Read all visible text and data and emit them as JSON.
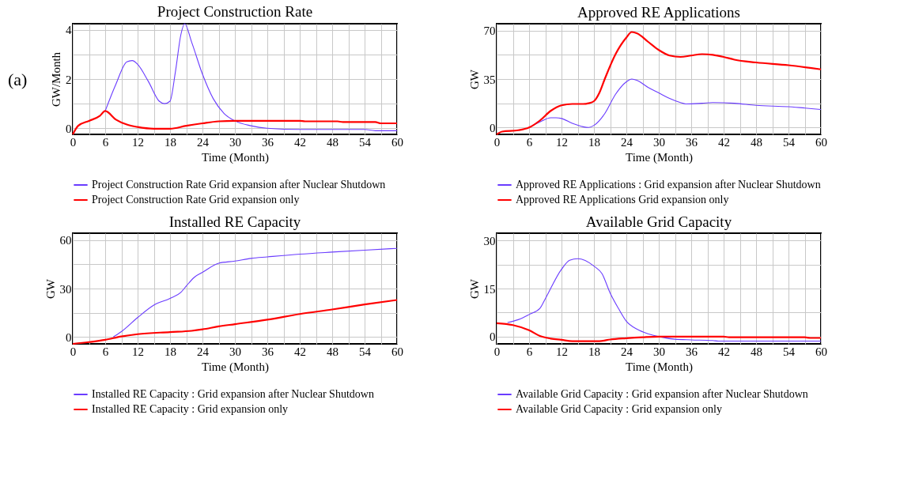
{
  "chart_data": [
    {
      "type": "line",
      "title": "Project Construction Rate",
      "xlabel": "Time (Month)",
      "ylabel": "GW/Month",
      "annotations": [
        "(a)"
      ],
      "grid": true,
      "legend": "bottom",
      "xlim": [
        0,
        60
      ],
      "xticks": [
        0,
        {
          "value": 3,
          "label": null
        },
        6,
        {
          "value": 9,
          "label": null
        },
        12,
        {
          "value": 15,
          "label": null
        },
        18,
        {
          "value": 21,
          "label": null
        },
        24,
        {
          "value": 27,
          "label": null
        },
        30,
        {
          "value": 33,
          "label": null
        },
        36,
        {
          "value": 39,
          "label": null
        },
        42,
        {
          "value": 45,
          "label": null
        },
        48,
        {
          "value": 51,
          "label": null
        },
        54,
        {
          "value": 57,
          "label": null
        },
        60
      ],
      "ylim": [
        -0.25,
        4.25
      ],
      "yticks": [
        0,
        {
          "value": 1,
          "label": null
        },
        2,
        {
          "value": 3,
          "label": null
        },
        4
      ],
      "series": [
        {
          "name": "Project Construction Rate Grid expansion after Nuclear Shutdown",
          "color": "#6a3cff",
          "x": [
            6,
            8,
            10,
            11,
            12,
            14,
            16,
            17,
            18,
            19,
            20,
            20.7,
            22,
            24,
            26,
            28,
            30,
            33,
            36,
            42,
            54,
            56,
            60
          ],
          "values": [
            0.7,
            1.8,
            2.7,
            2.75,
            2.6,
            1.9,
            1.1,
            1.0,
            1.1,
            2.3,
            3.8,
            4.25,
            3.5,
            2.2,
            1.2,
            0.6,
            0.3,
            0.1,
            0.0,
            -0.05,
            -0.05,
            -0.1,
            -0.1
          ]
        },
        {
          "name": "Project Construction Rate Grid expansion only",
          "color": "#ff0000",
          "x": [
            0,
            1,
            3,
            5,
            6,
            8,
            10,
            12,
            15,
            18,
            21,
            24,
            27,
            30,
            42,
            43,
            49,
            50,
            56,
            57,
            60
          ],
          "values": [
            -0.25,
            0.1,
            0.3,
            0.5,
            0.7,
            0.35,
            0.15,
            0.05,
            -0.02,
            -0.02,
            0.1,
            0.2,
            0.28,
            0.3,
            0.3,
            0.28,
            0.28,
            0.25,
            0.25,
            0.2,
            0.2
          ]
        }
      ]
    },
    {
      "type": "line",
      "title": "Approved RE Applications",
      "xlabel": "Time (Month)",
      "ylabel": "GW",
      "grid": true,
      "legend": "bottom",
      "xlim": [
        0,
        60
      ],
      "xticks": [
        0,
        {
          "value": 3,
          "label": null
        },
        6,
        {
          "value": 9,
          "label": null
        },
        12,
        {
          "value": 15,
          "label": null
        },
        18,
        {
          "value": 21,
          "label": null
        },
        24,
        {
          "value": 27,
          "label": null
        },
        30,
        {
          "value": 33,
          "label": null
        },
        36,
        {
          "value": 39,
          "label": null
        },
        42,
        {
          "value": 45,
          "label": null
        },
        48,
        {
          "value": 51,
          "label": null
        },
        54,
        {
          "value": 57,
          "label": null
        },
        60
      ],
      "ylim": [
        -5,
        75
      ],
      "yticks": [
        0,
        {
          "value": 17.5,
          "label": null
        },
        35,
        {
          "value": 52.5,
          "label": null
        },
        70
      ],
      "series": [
        {
          "name": "Approved RE Applications : Grid expansion after Nuclear Shutdown",
          "color": "#6a3cff",
          "x": [
            6,
            8,
            10,
            11,
            12,
            14,
            16,
            17,
            18,
            20,
            22,
            24,
            25,
            26,
            28,
            30,
            32,
            34,
            35,
            38,
            40,
            44,
            48,
            54,
            60
          ],
          "values": [
            0,
            4,
            7,
            7,
            6.5,
            3,
            0.5,
            0,
            1.5,
            10,
            24,
            33,
            35,
            34,
            29,
            25,
            21,
            18,
            17,
            17.5,
            18,
            17.5,
            16,
            15,
            13
          ]
        },
        {
          "name": "Approved RE Applications Grid expansion only",
          "color": "#ff0000",
          "x": [
            0,
            1,
            4,
            6,
            8,
            10,
            12,
            14,
            16,
            17,
            18,
            19,
            20,
            22,
            24,
            25,
            26,
            28,
            30,
            32,
            34,
            36,
            38,
            40,
            42,
            44,
            48,
            54,
            60
          ],
          "values": [
            -5,
            -3,
            -2,
            0,
            5,
            12,
            16,
            17,
            17,
            17.5,
            19,
            25,
            35,
            53,
            65,
            69,
            68,
            62,
            56,
            52,
            51,
            52,
            53,
            52.5,
            51,
            49,
            47,
            45,
            42
          ]
        }
      ]
    },
    {
      "type": "line",
      "title": "Installed RE Capacity",
      "xlabel": "Time (Month)",
      "ylabel": "GW",
      "grid": true,
      "legend": "bottom",
      "xlim": [
        0,
        60
      ],
      "xticks": [
        0,
        {
          "value": 3,
          "label": null
        },
        6,
        {
          "value": 9,
          "label": null
        },
        12,
        {
          "value": 15,
          "label": null
        },
        18,
        {
          "value": 21,
          "label": null
        },
        24,
        {
          "value": 27,
          "label": null
        },
        30,
        {
          "value": 33,
          "label": null
        },
        36,
        {
          "value": 39,
          "label": null
        },
        42,
        {
          "value": 45,
          "label": null
        },
        48,
        {
          "value": 51,
          "label": null
        },
        54,
        {
          "value": 57,
          "label": null
        },
        60
      ],
      "ylim": [
        -4.3,
        64.3
      ],
      "yticks": [
        0,
        {
          "value": 15,
          "label": null
        },
        30,
        {
          "value": 45,
          "label": null
        },
        60
      ],
      "series": [
        {
          "name": "Installed RE Capacity : Grid expansion after Nuclear Shutdown",
          "color": "#6a3cff",
          "x": [
            7.5,
            9,
            12,
            15,
            18,
            20,
            21,
            22.5,
            24,
            27,
            30,
            33,
            36,
            42,
            48,
            54,
            60
          ],
          "values": [
            0,
            3.3,
            12,
            19.7,
            23.9,
            27.6,
            31.5,
            37,
            40,
            45.7,
            47,
            48.7,
            49.6,
            51.3,
            52.6,
            53.8,
            54.9
          ]
        },
        {
          "name": "Installed RE Capacity : Grid expansion only",
          "color": "#ff0000",
          "x": [
            0,
            3,
            6,
            9,
            12,
            18,
            22,
            24,
            27,
            30,
            36,
            42,
            48,
            54,
            60
          ],
          "values": [
            -4.3,
            -3.2,
            -1.8,
            0.3,
            1.7,
            3,
            3.8,
            4.7,
            6.5,
            7.9,
            10.7,
            14.2,
            17,
            20.1,
            22.9
          ]
        }
      ]
    },
    {
      "type": "line",
      "title": "Available Grid Capacity",
      "xlabel": "Time (Month)",
      "ylabel": "GW",
      "grid": true,
      "legend": "bottom",
      "xlim": [
        0,
        60
      ],
      "xticks": [
        0,
        {
          "value": 3,
          "label": null
        },
        6,
        {
          "value": 9,
          "label": null
        },
        12,
        {
          "value": 15,
          "label": null
        },
        18,
        {
          "value": 21,
          "label": null
        },
        24,
        {
          "value": 27,
          "label": null
        },
        30,
        {
          "value": 33,
          "label": null
        },
        36,
        {
          "value": 39,
          "label": null
        },
        42,
        {
          "value": 45,
          "label": null
        },
        48,
        {
          "value": 51,
          "label": null
        },
        54,
        {
          "value": 57,
          "label": null
        },
        60
      ],
      "ylim": [
        -2.25,
        32.25
      ],
      "yticks": [
        0,
        {
          "value": 7.5,
          "label": null
        },
        15,
        {
          "value": 22.5,
          "label": null
        },
        30
      ],
      "series": [
        {
          "name": "Available Grid Capacity : Grid expansion after Nuclear Shutdown",
          "color": "#6a3cff",
          "x": [
            2,
            4,
            6,
            8,
            9,
            12,
            13.5,
            15,
            18,
            19.5,
            21,
            22.5,
            24,
            26,
            28,
            30,
            33,
            36,
            40,
            41,
            60
          ],
          "values": [
            4.4,
            5.3,
            6.9,
            8.8,
            11.8,
            21,
            23.8,
            24.3,
            22,
            19.6,
            13.6,
            8.9,
            4.8,
            2.3,
            0.9,
            0,
            -0.8,
            -1,
            -1.2,
            -1.4,
            -1.4
          ]
        },
        {
          "name": "Available Grid Capacity : Grid expansion only",
          "color": "#ff0000",
          "x": [
            0,
            3,
            6,
            8,
            10,
            12,
            14,
            19,
            21,
            24,
            27,
            30,
            42,
            43,
            57,
            58,
            60
          ],
          "values": [
            4.2,
            3.6,
            2,
            0.2,
            -0.6,
            -1,
            -1.4,
            -1.4,
            -0.9,
            -0.5,
            -0.2,
            0,
            0,
            -0.2,
            -0.2,
            -0.4,
            -0.4
          ]
        }
      ]
    }
  ]
}
